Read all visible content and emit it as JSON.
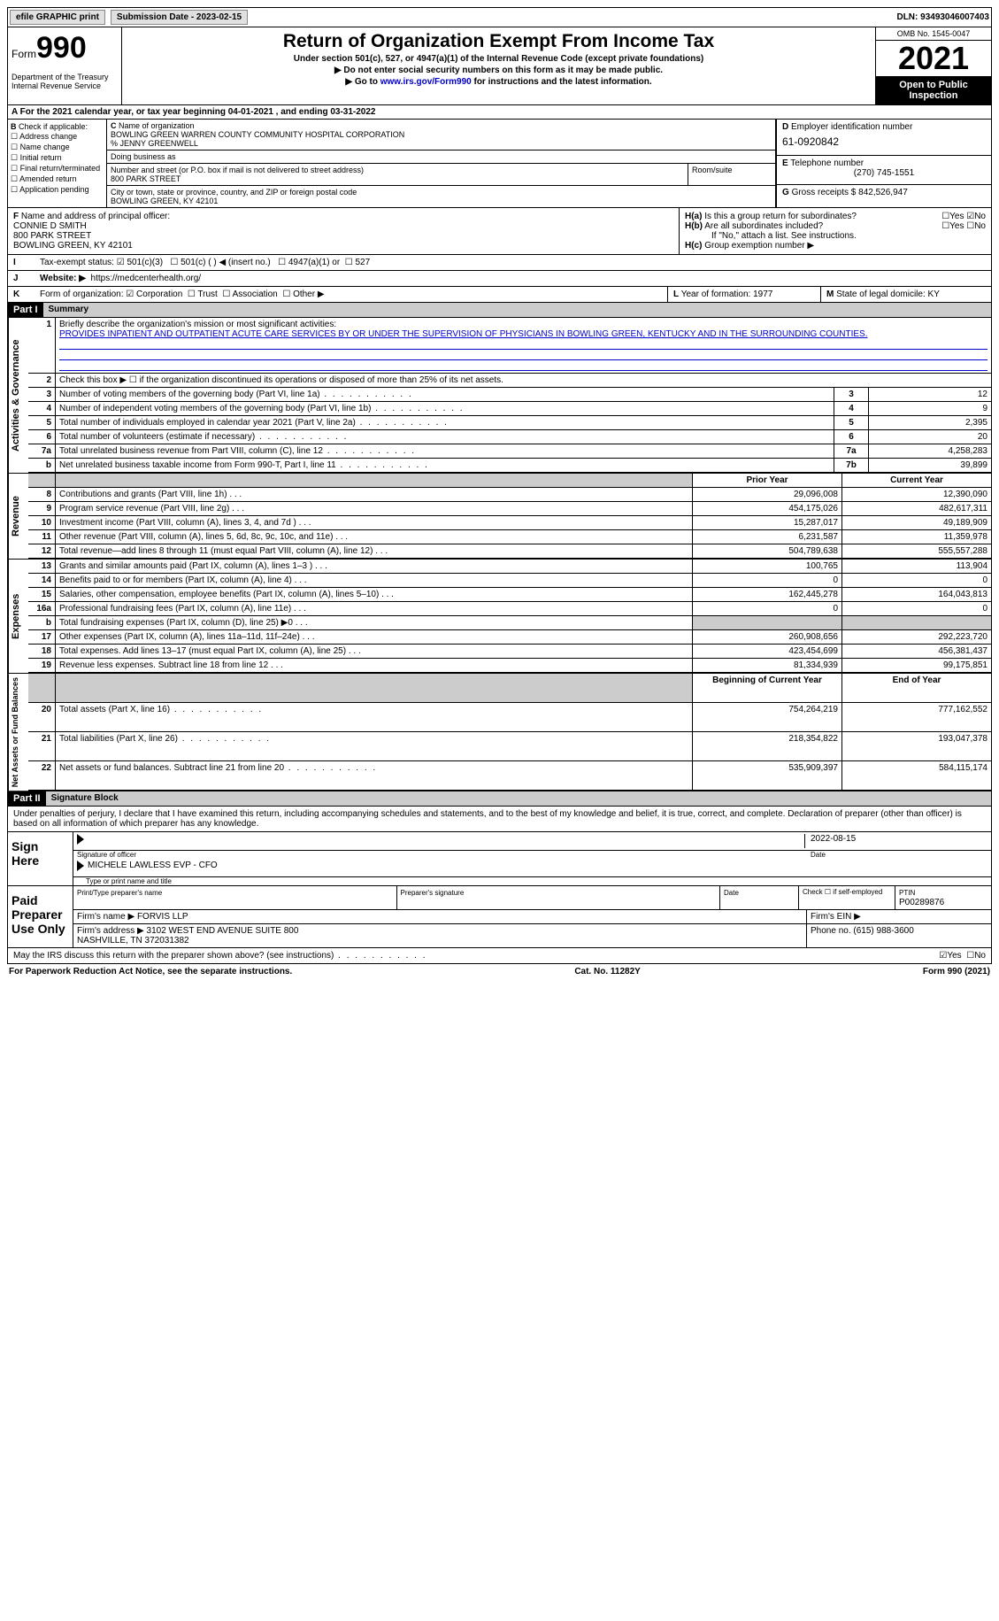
{
  "top": {
    "efile": "efile GRAPHIC print",
    "sub_label": "Submission Date - 2023-02-15",
    "dln": "DLN: 93493046007403"
  },
  "header": {
    "form_word": "Form",
    "form_num": "990",
    "dept": "Department of the Treasury\nInternal Revenue Service",
    "title": "Return of Organization Exempt From Income Tax",
    "sub1": "Under section 501(c), 527, or 4947(a)(1) of the Internal Revenue Code (except private foundations)",
    "sub2": "Do not enter social security numbers on this form as it may be made public.",
    "sub3_pre": "Go to ",
    "sub3_link": "www.irs.gov/Form990",
    "sub3_post": " for instructions and the latest information.",
    "omb": "OMB No. 1545-0047",
    "year": "2021",
    "open": "Open to Public Inspection"
  },
  "a": "For the 2021 calendar year, or tax year beginning 04-01-2021   , and ending 03-31-2022",
  "b": {
    "label": "Check if applicable:",
    "opts": [
      "Address change",
      "Name change",
      "Initial return",
      "Final return/terminated",
      "Amended return",
      "Application pending"
    ]
  },
  "c": {
    "label": "Name of organization",
    "name": "BOWLING GREEN WARREN COUNTY COMMUNITY HOSPITAL CORPORATION\n% JENNY GREENWELL",
    "dba_label": "Doing business as",
    "street_label": "Number and street (or P.O. box if mail is not delivered to street address)",
    "room_label": "Room/suite",
    "street": "800 PARK STREET",
    "city_label": "City or town, state or province, country, and ZIP or foreign postal code",
    "city": "BOWLING GREEN, KY  42101"
  },
  "d": {
    "label_ein": "Employer identification number",
    "ein": "61-0920842",
    "label_phone": "Telephone number",
    "phone": "(270) 745-1551",
    "label_gross": "Gross receipts $",
    "gross": "842,526,947"
  },
  "f": {
    "label": "Name and address of principal officer:",
    "val": "CONNIE D SMITH\n800 PARK STREET\nBOWLING GREEN, KY  42101"
  },
  "h": {
    "a": "Is this a group return for subordinates?",
    "b": "Are all subordinates included?",
    "b_note": "If \"No,\" attach a list. See instructions.",
    "c": "Group exemption number ▶"
  },
  "i": {
    "label": "Tax-exempt status:",
    "opts": [
      "501(c)(3)",
      "501(c) (  ) ◀ (insert no.)",
      "4947(a)(1) or",
      "527"
    ]
  },
  "j": {
    "label": "Website: ▶",
    "val": "https://medcenterhealth.org/"
  },
  "k": {
    "label": "Form of organization:",
    "opts": [
      "Corporation",
      "Trust",
      "Association",
      "Other ▶"
    ]
  },
  "l": {
    "label": "Year of formation:",
    "val": "1977"
  },
  "m": {
    "label": "State of legal domicile:",
    "val": "KY"
  },
  "part1": {
    "header": "Part I",
    "title": "Summary",
    "line1_label": "Briefly describe the organization's mission or most significant activities:",
    "mission": "PROVIDES INPATIENT AND OUTPATIENT ACUTE CARE SERVICES BY OR UNDER THE SUPERVISION OF PHYSICIANS IN BOWLING GREEN, KENTUCKY AND IN THE SURROUNDING COUNTIES.",
    "line2": "Check this box ▶ ☐ if the organization discontinued its operations or disposed of more than 25% of its net assets.",
    "rows_a": [
      {
        "n": "3",
        "t": "Number of voting members of the governing body (Part VI, line 1a)",
        "box": "3",
        "v": "12"
      },
      {
        "n": "4",
        "t": "Number of independent voting members of the governing body (Part VI, line 1b)",
        "box": "4",
        "v": "9"
      },
      {
        "n": "5",
        "t": "Total number of individuals employed in calendar year 2021 (Part V, line 2a)",
        "box": "5",
        "v": "2,395"
      },
      {
        "n": "6",
        "t": "Total number of volunteers (estimate if necessary)",
        "box": "6",
        "v": "20"
      },
      {
        "n": "7a",
        "t": "Total unrelated business revenue from Part VIII, column (C), line 12",
        "box": "7a",
        "v": "4,258,283"
      },
      {
        "n": "b",
        "t": "Net unrelated business taxable income from Form 990-T, Part I, line 11",
        "box": "7b",
        "v": "39,899"
      }
    ],
    "col_prior": "Prior Year",
    "col_current": "Current Year",
    "rows_rev": [
      {
        "n": "8",
        "t": "Contributions and grants (Part VIII, line 1h)",
        "p": "29,096,008",
        "c": "12,390,090"
      },
      {
        "n": "9",
        "t": "Program service revenue (Part VIII, line 2g)",
        "p": "454,175,026",
        "c": "482,617,311"
      },
      {
        "n": "10",
        "t": "Investment income (Part VIII, column (A), lines 3, 4, and 7d )",
        "p": "15,287,017",
        "c": "49,189,909"
      },
      {
        "n": "11",
        "t": "Other revenue (Part VIII, column (A), lines 5, 6d, 8c, 9c, 10c, and 11e)",
        "p": "6,231,587",
        "c": "11,359,978"
      },
      {
        "n": "12",
        "t": "Total revenue—add lines 8 through 11 (must equal Part VIII, column (A), line 12)",
        "p": "504,789,638",
        "c": "555,557,288"
      }
    ],
    "rows_exp": [
      {
        "n": "13",
        "t": "Grants and similar amounts paid (Part IX, column (A), lines 1–3 )",
        "p": "100,765",
        "c": "113,904"
      },
      {
        "n": "14",
        "t": "Benefits paid to or for members (Part IX, column (A), line 4)",
        "p": "0",
        "c": "0"
      },
      {
        "n": "15",
        "t": "Salaries, other compensation, employee benefits (Part IX, column (A), lines 5–10)",
        "p": "162,445,278",
        "c": "164,043,813"
      },
      {
        "n": "16a",
        "t": "Professional fundraising fees (Part IX, column (A), line 11e)",
        "p": "0",
        "c": "0"
      },
      {
        "n": "b",
        "t": "Total fundraising expenses (Part IX, column (D), line 25) ▶0",
        "p": "",
        "c": "",
        "grey": true
      },
      {
        "n": "17",
        "t": "Other expenses (Part IX, column (A), lines 11a–11d, 11f–24e)",
        "p": "260,908,656",
        "c": "292,223,720"
      },
      {
        "n": "18",
        "t": "Total expenses. Add lines 13–17 (must equal Part IX, column (A), line 25)",
        "p": "423,454,699",
        "c": "456,381,437"
      },
      {
        "n": "19",
        "t": "Revenue less expenses. Subtract line 18 from line 12",
        "p": "81,334,939",
        "c": "99,175,851"
      }
    ],
    "col_begin": "Beginning of Current Year",
    "col_end": "End of Year",
    "rows_net": [
      {
        "n": "20",
        "t": "Total assets (Part X, line 16)",
        "p": "754,264,219",
        "c": "777,162,552"
      },
      {
        "n": "21",
        "t": "Total liabilities (Part X, line 26)",
        "p": "218,354,822",
        "c": "193,047,378"
      },
      {
        "n": "22",
        "t": "Net assets or fund balances. Subtract line 21 from line 20",
        "p": "535,909,397",
        "c": "584,115,174"
      }
    ],
    "vtabs": [
      "Activities & Governance",
      "Revenue",
      "Expenses",
      "Net Assets or Fund Balances"
    ]
  },
  "part2": {
    "header": "Part II",
    "title": "Signature Block",
    "decl": "Under penalties of perjury, I declare that I have examined this return, including accompanying schedules and statements, and to the best of my knowledge and belief, it is true, correct, and complete. Declaration of preparer (other than officer) is based on all information of which preparer has any knowledge.",
    "sign_here": "Sign Here",
    "sig_officer": "Signature of officer",
    "sig_date": "2022-08-15",
    "date_label": "Date",
    "name_title": "MICHELE LAWLESS EVP - CFO",
    "name_label": "Type or print name and title",
    "paid": "Paid Preparer Use Only",
    "prep_name_label": "Print/Type preparer's name",
    "prep_sig_label": "Preparer's signature",
    "check_if": "Check ☐ if self-employed",
    "ptin_label": "PTIN",
    "ptin": "P00289876",
    "firm_name_label": "Firm's name   ▶",
    "firm_name": "FORVIS LLP",
    "firm_ein_label": "Firm's EIN ▶",
    "firm_addr_label": "Firm's address ▶",
    "firm_addr": "3102 WEST END AVENUE SUITE 800\nNASHVILLE, TN  372031382",
    "firm_phone_label": "Phone no.",
    "firm_phone": "(615) 988-3600",
    "may_irs": "May the IRS discuss this return with the preparer shown above? (see instructions)"
  },
  "footer": {
    "left": "For Paperwork Reduction Act Notice, see the separate instructions.",
    "mid": "Cat. No. 11282Y",
    "right": "Form 990 (2021)"
  },
  "colors": {
    "link": "#0000cc",
    "black": "#000000"
  }
}
